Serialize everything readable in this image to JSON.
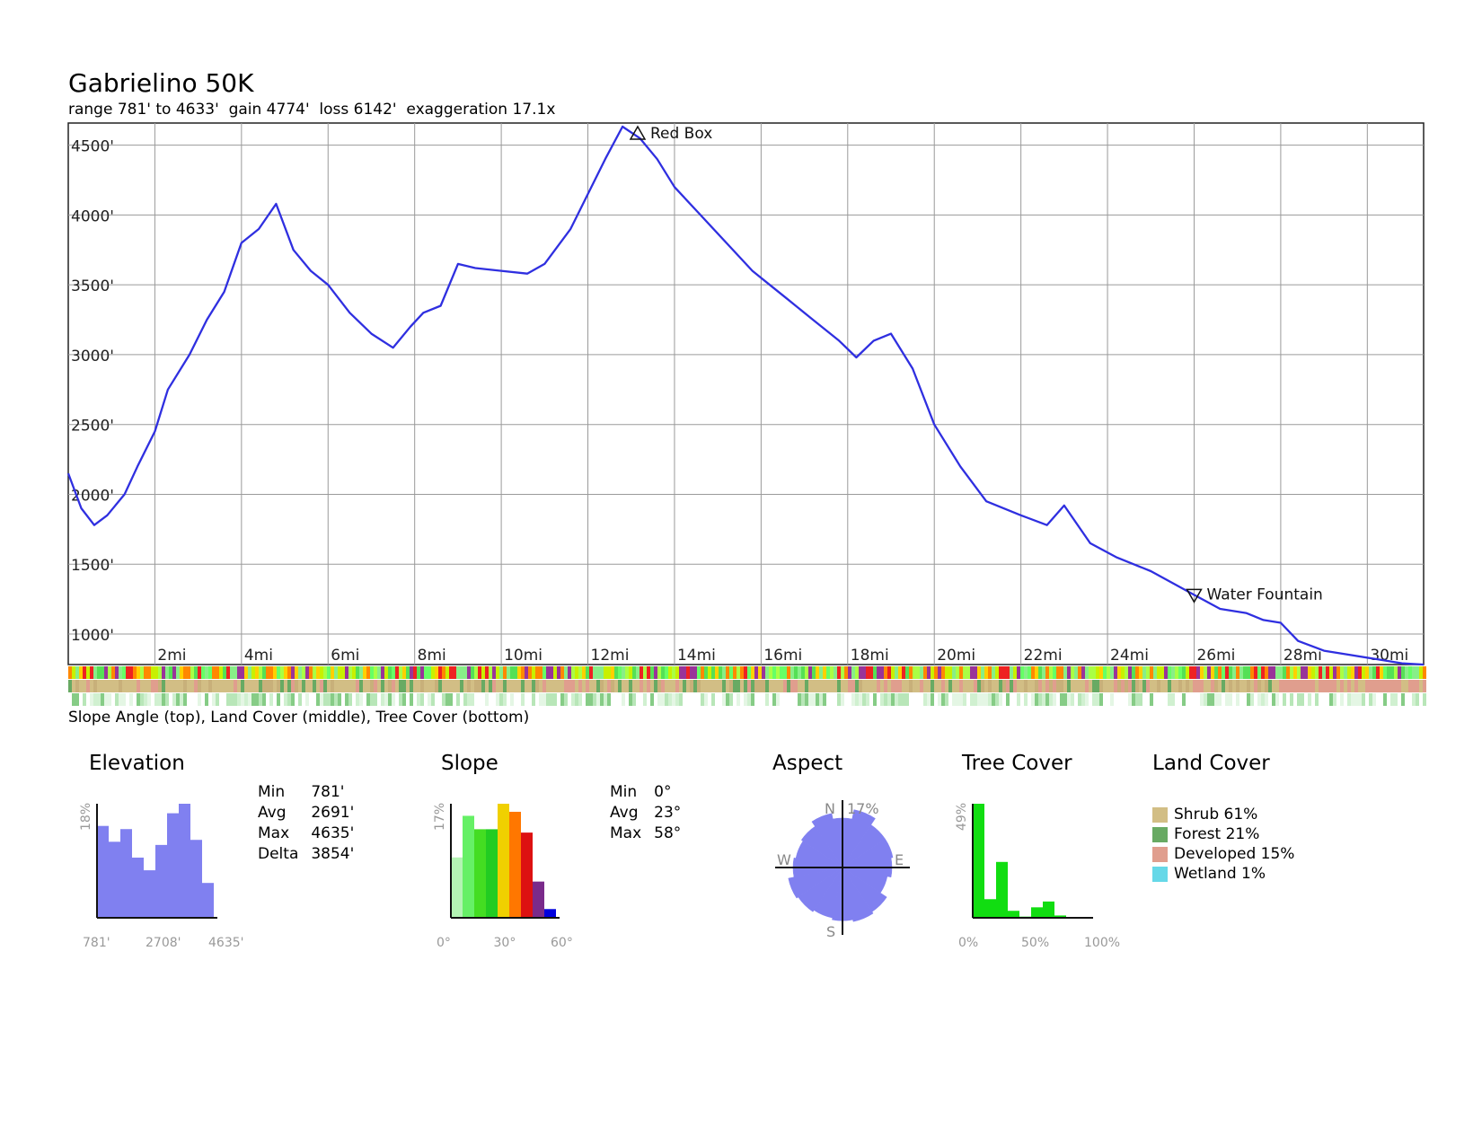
{
  "title": "Gabrielino 50K",
  "subtitle": "range 781' to 4633'  gain 4774'  loss 6142'  exaggeration 17.1x",
  "bars_caption": "Slope Angle (top), Land Cover (middle), Tree Cover (bottom)",
  "chart_data": [
    {
      "type": "line",
      "name": "elevation-profile",
      "xlim": [
        0,
        31.3
      ],
      "ylim": [
        781,
        4633
      ],
      "x_ticks": [
        2,
        4,
        6,
        8,
        10,
        12,
        14,
        16,
        18,
        20,
        22,
        24,
        26,
        28,
        30
      ],
      "x_tick_labels": [
        "2mi",
        "4mi",
        "6mi",
        "8mi",
        "10mi",
        "12mi",
        "14mi",
        "16mi",
        "18mi",
        "20mi",
        "22mi",
        "24mi",
        "26mi",
        "28mi",
        "30mi"
      ],
      "y_ticks": [
        1000,
        1500,
        2000,
        2500,
        3000,
        3500,
        4000,
        4500
      ],
      "y_tick_labels": [
        "1000'",
        "1500'",
        "2000'",
        "2500'",
        "3000'",
        "3500'",
        "4000'",
        "4500'"
      ],
      "grid": true,
      "line_color": "#2f2fe0",
      "series": [
        {
          "x": [
            0,
            0.3,
            0.6,
            0.9,
            1.3,
            1.6,
            2.0,
            2.3,
            2.8,
            3.2,
            3.6,
            4.0,
            4.4,
            4.8,
            5.2,
            5.6,
            6.0,
            6.5,
            7.0,
            7.5,
            7.9,
            8.2,
            8.6,
            9.0,
            9.4,
            10.0,
            10.6,
            11.0,
            11.6,
            12.0,
            12.4,
            12.8,
            13.2,
            13.6,
            14.0,
            14.6,
            15.2,
            15.8,
            16.2,
            16.6,
            17.2,
            17.8,
            18.2,
            18.6,
            19.0,
            19.5,
            20.0,
            20.6,
            21.2,
            22.0,
            22.6,
            23.0,
            23.6,
            24.2,
            25.0,
            26.0,
            26.6,
            27.2,
            27.6,
            28.0,
            28.4,
            29.0,
            29.6,
            30.2,
            30.8,
            31.3
          ],
          "y": [
            2150,
            1900,
            1780,
            1850,
            2000,
            2200,
            2450,
            2750,
            3000,
            3250,
            3450,
            3800,
            3900,
            4080,
            3750,
            3600,
            3500,
            3300,
            3150,
            3050,
            3200,
            3300,
            3350,
            3650,
            3620,
            3600,
            3580,
            3650,
            3900,
            4150,
            4400,
            4633,
            4550,
            4400,
            4200,
            4000,
            3800,
            3600,
            3500,
            3400,
            3250,
            3100,
            2980,
            3100,
            3150,
            2900,
            2500,
            2200,
            1950,
            1850,
            1780,
            1920,
            1650,
            1550,
            1450,
            1280,
            1180,
            1150,
            1100,
            1080,
            950,
            880,
            850,
            820,
            790,
            781
          ]
        }
      ],
      "annotations": [
        {
          "label": "Red Box",
          "x": 13.15,
          "y": 4633,
          "marker": "up-triangle"
        },
        {
          "label": "Water Fountain",
          "x": 26.0,
          "y": 1280,
          "marker": "down-triangle"
        }
      ]
    },
    {
      "type": "bar",
      "name": "elevation-histogram",
      "title": "Elevation",
      "x_tick_labels": [
        "781'",
        "2708'",
        "4635'"
      ],
      "ylabel": "18%",
      "ymax": 18,
      "values": [
        14.5,
        12,
        14,
        9.5,
        7.5,
        11.5,
        16.5,
        18,
        12.3,
        5.5
      ],
      "color": "#8080f0",
      "stats": [
        {
          "k": "Min",
          "v": "781'"
        },
        {
          "k": "Avg",
          "v": "2691'"
        },
        {
          "k": "Max",
          "v": "4635'"
        },
        {
          "k": "Delta",
          "v": "3854'"
        }
      ]
    },
    {
      "type": "bar",
      "name": "slope-histogram",
      "title": "Slope",
      "x_tick_labels": [
        "0°",
        "30°",
        "60°"
      ],
      "ylabel": "17%",
      "ymax": 17,
      "values": [
        9,
        15.2,
        13.2,
        13.2,
        17,
        15.8,
        12.7,
        5.4,
        1.3
      ],
      "colors": [
        "#b4f4b4",
        "#66f066",
        "#44dd22",
        "#22cc22",
        "#f0d000",
        "#ff7700",
        "#dd1111",
        "#7a2a8a",
        "#0000dd"
      ],
      "stats": [
        {
          "k": "Min",
          "v": "0°"
        },
        {
          "k": "Avg",
          "v": "23°"
        },
        {
          "k": "Max",
          "v": "58°"
        }
      ]
    },
    {
      "type": "pie",
      "name": "aspect-rose",
      "title": "Aspect",
      "direction_labels": [
        "N",
        "E",
        "S",
        "W"
      ],
      "max_label": "17%",
      "color": "#8080f0",
      "values": [
        13,
        15.5,
        13.5,
        13.5,
        13,
        12,
        14,
        14.5,
        14,
        13.5,
        14,
        14.5,
        13,
        12.5,
        13,
        14.5
      ]
    },
    {
      "type": "bar",
      "name": "tree-cover-histogram",
      "title": "Tree Cover",
      "x_tick_labels": [
        "0%",
        "50%",
        "100%"
      ],
      "ylabel": "49%",
      "ymax": 49,
      "values": [
        49,
        8,
        24,
        3,
        0.5,
        4.5,
        7,
        1,
        0,
        0
      ],
      "color": "#11dd11"
    },
    {
      "type": "table",
      "name": "land-cover-legend",
      "title": "Land Cover",
      "items": [
        {
          "label": "Shrub 61%",
          "color": "#d2be85"
        },
        {
          "label": "Forest 21%",
          "color": "#68aa63"
        },
        {
          "label": "Developed 15%",
          "color": "#e09e8e"
        },
        {
          "label": "Wetland 1%",
          "color": "#66d8e8"
        }
      ]
    }
  ]
}
